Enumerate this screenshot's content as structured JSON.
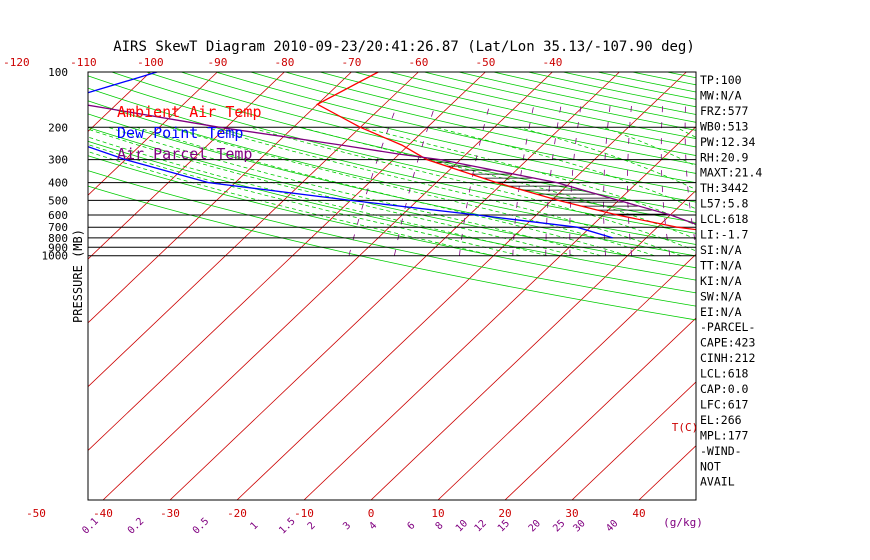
{
  "chart_data": {
    "type": "line",
    "title": "AIRS SkewT Diagram 2010-09-23/20:41:26.87 (Lat/Lon 35.13/-107.90 deg)",
    "ylabel": "PRESSURE (MB)",
    "xunit": "T(C)",
    "mixunit": "(g/kg)",
    "pressure_ticks": [
      "100",
      "200",
      "300",
      "400",
      "500",
      "600",
      "700",
      "800",
      "900",
      "1000"
    ],
    "top_temp_ticks": [
      "-120",
      "-110",
      "-100",
      "-90",
      "-80",
      "-70",
      "-60",
      "-50",
      "-40"
    ],
    "bottom_temp_ticks": [
      "-50",
      "-40",
      "-30",
      "-20",
      "-10",
      "0",
      "10",
      "20",
      "30",
      "40"
    ],
    "mixing_ratio_ticks": [
      "0.1",
      "0.2",
      "0.5",
      "1",
      "1.5",
      "2",
      "3",
      "4",
      "6",
      "8",
      "10",
      "12",
      "15",
      "20",
      "25",
      "30",
      "40"
    ],
    "legend": [
      {
        "name": "Ambient Air Temp",
        "color": "#ff0000"
      },
      {
        "name": "Dew Point Temp",
        "color": "#0000ff"
      },
      {
        "name": "Air Parcel Temp",
        "color": "#800080"
      }
    ],
    "isotherm_color": "#cc0000",
    "dry_adiabat_color": "#00cc00",
    "moist_adiabat_color": "#00cc00",
    "mixing_line_color": "#800080",
    "series": [
      {
        "name": "Ambient Air Temp",
        "color": "#ff0000",
        "points": [
          [
            100,
            -66
          ],
          [
            150,
            -70
          ],
          [
            200,
            -60
          ],
          [
            250,
            -51
          ],
          [
            300,
            -45
          ],
          [
            400,
            -31
          ],
          [
            500,
            -19
          ],
          [
            600,
            -8
          ],
          [
            700,
            3
          ],
          [
            800,
            17
          ]
        ]
      },
      {
        "name": "Dew Point Temp",
        "color": "#0000ff",
        "points": [
          [
            100,
            -99
          ],
          [
            150,
            -110
          ],
          [
            200,
            -109
          ],
          [
            300,
            -90
          ],
          [
            400,
            -74
          ],
          [
            500,
            -50
          ],
          [
            600,
            -29
          ],
          [
            700,
            -12
          ],
          [
            800,
            -5
          ]
        ]
      },
      {
        "name": "Air Parcel Temp",
        "color": "#800080",
        "points": [
          [
            100,
            -125
          ],
          [
            150,
            -105
          ],
          [
            200,
            -81
          ],
          [
            250,
            -60
          ],
          [
            280,
            -50
          ],
          [
            300,
            -43
          ],
          [
            400,
            -22
          ],
          [
            500,
            -10
          ],
          [
            600,
            0
          ],
          [
            700,
            7
          ],
          [
            800,
            17
          ]
        ]
      }
    ],
    "stats": [
      "TP:100",
      "MW:N/A",
      "FRZ:577",
      "WB0:513",
      "PW:12.34",
      "RH:20.9",
      "MAXT:21.4",
      "TH:3442",
      "L57:5.8",
      "LCL:618",
      "LI:-1.7",
      "SI:N/A",
      "TT:N/A",
      "KI:N/A",
      "SW:N/A",
      "EI:N/A",
      "-PARCEL-",
      "CAPE:423",
      "CINH:212",
      "LCL:618",
      "CAP:0.0",
      "LFC:617",
      "EL:266",
      "MPL:177",
      "-WIND-",
      "NOT",
      "AVAIL"
    ]
  }
}
